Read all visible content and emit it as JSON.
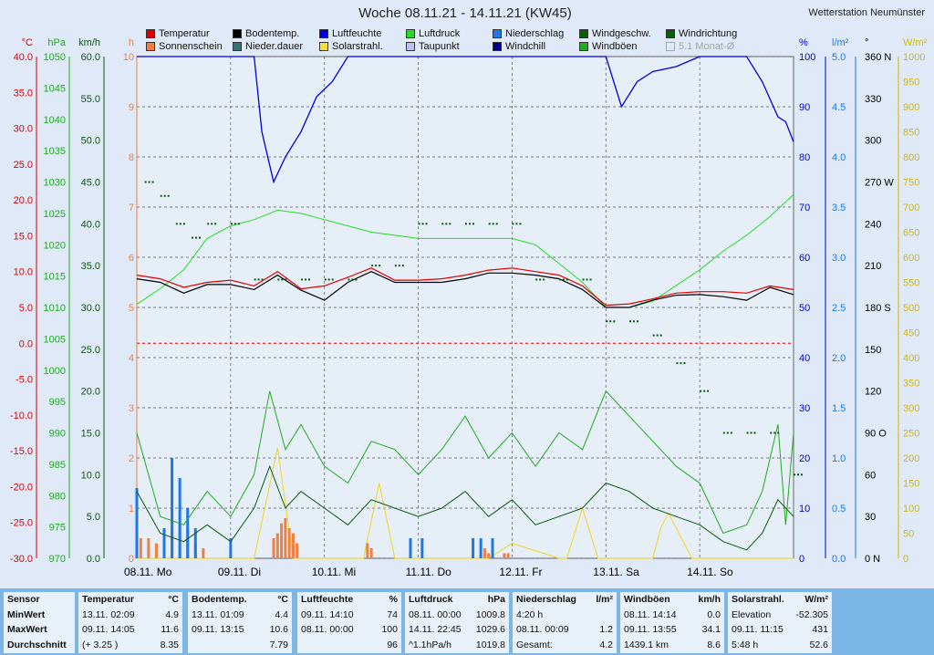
{
  "title": "Woche 08.11.21 - 14.11.21 (KW45)",
  "station": "Wetterstation Neumünster",
  "legend": [
    {
      "label": "Temperatur",
      "color": "#e00000"
    },
    {
      "label": "Bodentemp.",
      "color": "#000000"
    },
    {
      "label": "Luftfeuchte",
      "color": "#0000dd"
    },
    {
      "label": "Luftdruck",
      "color": "#22dd22"
    },
    {
      "label": "Niederschlag",
      "color": "#1e78e6"
    },
    {
      "label": "Windgeschw.",
      "color": "#0b5a0b"
    },
    {
      "label": "Windrichtung",
      "color": "#0b5a0b"
    },
    {
      "label": "Sonnenschein",
      "color": "#f08040"
    },
    {
      "label": "Nieder.dauer",
      "color": "#3c7070"
    },
    {
      "label": "Solarstrahl.",
      "color": "#f0e040"
    },
    {
      "label": "Taupunkt",
      "color": "#c0c0f0"
    },
    {
      "label": "Windchill",
      "color": "#000080"
    },
    {
      "label": "Windböen",
      "color": "#22aa22"
    },
    {
      "label": "5.1 Monat-Ø",
      "color": "#ffffff"
    }
  ],
  "axes": {
    "temp": {
      "unit": "°C",
      "ticks": [
        "40.0",
        "35.0",
        "30.0",
        "25.0",
        "20.0",
        "15.0",
        "10.0",
        "5.0",
        "0.0",
        "-5.0",
        "-10.0",
        "-15.0",
        "-20.0",
        "-25.0",
        "-30.0"
      ],
      "color": "#e00000"
    },
    "pressure": {
      "unit": "hPa",
      "ticks": [
        "1050",
        "1045",
        "1040",
        "1035",
        "1030",
        "1025",
        "1020",
        "1015",
        "1010",
        "1005",
        "1000",
        "995",
        "990",
        "985",
        "980",
        "975",
        "970"
      ],
      "color": "#22aa22"
    },
    "wind": {
      "unit": "km/h",
      "ticks": [
        "60.0",
        "55.0",
        "50.0",
        "45.0",
        "40.0",
        "35.0",
        "30.0",
        "25.0",
        "20.0",
        "15.0",
        "10.0",
        "5.0",
        "0.0"
      ],
      "color": "#0b5a0b"
    },
    "sun": {
      "unit": "h",
      "ticks": [
        "10",
        "9",
        "8",
        "7",
        "6",
        "5",
        "4",
        "3",
        "2",
        "1",
        "0"
      ],
      "color": "#f08040"
    },
    "humidity": {
      "unit": "%",
      "ticks": [
        "100",
        "90",
        "80",
        "70",
        "60",
        "50",
        "40",
        "30",
        "20",
        "10",
        "0"
      ],
      "color": "#0000dd"
    },
    "rain": {
      "unit": "l/m²",
      "ticks": [
        "5.0",
        "4.5",
        "4.0",
        "3.5",
        "3.0",
        "2.5",
        "2.0",
        "1.5",
        "1.0",
        "0.5",
        "0.0"
      ],
      "color": "#1e78e6"
    },
    "direction": {
      "unit": "°",
      "ticks": [
        "360 N",
        "330",
        "300",
        "270 W",
        "240",
        "210",
        "180 S",
        "150",
        "120",
        "90  O",
        "60",
        "30",
        "0   N"
      ],
      "color": "#000000"
    },
    "solar": {
      "unit": "W/m²",
      "ticks": [
        "1000",
        "950",
        "900",
        "850",
        "800",
        "750",
        "700",
        "650",
        "600",
        "550",
        "500",
        "450",
        "400",
        "350",
        "300",
        "250",
        "200",
        "150",
        "100",
        "50",
        "0"
      ],
      "color": "#d4b800"
    }
  },
  "days": [
    "08.11. Mo",
    "09.11. Di",
    "10.11. Mi",
    "11.11. Do",
    "12.11. Fr",
    "13.11. Sa",
    "14.11. So"
  ],
  "chart_data": {
    "type": "line",
    "title": "Woche 08.11.21 - 14.11.21 (KW45)",
    "x_unit": "hours since 08.11. 00:00",
    "series": [
      {
        "name": "Temperatur",
        "unit": "°C",
        "x": [
          0,
          6,
          12,
          18,
          24,
          30,
          36,
          42,
          48,
          54,
          60,
          66,
          72,
          78,
          84,
          90,
          96,
          102,
          108,
          114,
          120,
          126,
          132,
          138,
          144,
          150,
          156,
          162,
          168
        ],
        "values": [
          9.5,
          9.0,
          7.8,
          8.5,
          8.8,
          8.0,
          10.0,
          7.6,
          8.0,
          9.2,
          10.5,
          8.8,
          8.8,
          9.0,
          9.5,
          10.2,
          10.5,
          10.0,
          9.5,
          8.0,
          5.3,
          5.5,
          6.2,
          7.0,
          7.2,
          7.2,
          7.0,
          8.0,
          7.5
        ]
      },
      {
        "name": "Bodentemp.",
        "unit": "°C",
        "x": [
          0,
          6,
          12,
          18,
          24,
          30,
          36,
          42,
          48,
          54,
          60,
          66,
          72,
          78,
          84,
          90,
          96,
          102,
          108,
          114,
          120,
          126,
          132,
          138,
          144,
          150,
          156,
          162,
          168
        ],
        "values": [
          9.0,
          8.5,
          7.0,
          8.2,
          8.2,
          7.5,
          9.5,
          7.4,
          6.0,
          8.5,
          10.0,
          8.5,
          8.5,
          8.5,
          9.0,
          9.8,
          9.8,
          9.5,
          9.0,
          7.5,
          5.0,
          5.0,
          6.0,
          6.7,
          6.8,
          6.5,
          6.0,
          7.8,
          6.8
        ]
      },
      {
        "name": "Luftfeuchte",
        "unit": "%",
        "x": [
          0,
          6,
          12,
          18,
          24,
          30,
          32,
          35,
          38,
          42,
          46,
          50,
          54,
          60,
          66,
          72,
          78,
          84,
          90,
          96,
          102,
          108,
          112,
          116,
          120,
          124,
          128,
          132,
          138,
          144,
          150,
          156,
          160,
          164,
          166,
          168
        ],
        "values": [
          100,
          100,
          100,
          100,
          100,
          100,
          85,
          75,
          80,
          85,
          92,
          95,
          100,
          100,
          100,
          100,
          100,
          100,
          100,
          100,
          100,
          100,
          100,
          100,
          100,
          90,
          95,
          97,
          98,
          100,
          100,
          100,
          95,
          88,
          87,
          83
        ]
      },
      {
        "name": "Luftdruck",
        "unit": "hPa",
        "x": [
          0,
          6,
          12,
          18,
          24,
          30,
          36,
          42,
          48,
          54,
          60,
          66,
          72,
          78,
          84,
          90,
          96,
          102,
          108,
          114,
          120,
          126,
          132,
          138,
          144,
          150,
          156,
          162,
          168
        ],
        "values": [
          1010.5,
          1013,
          1016,
          1021,
          1023,
          1024,
          1025.5,
          1025,
          1024,
          1023,
          1022,
          1021.5,
          1021,
          1021,
          1021,
          1021,
          1021,
          1020,
          1017,
          1014,
          1010,
          1010,
          1011,
          1013.5,
          1016,
          1019,
          1021.5,
          1024.5,
          1028
        ]
      },
      {
        "name": "Windgeschw.",
        "unit": "km/h",
        "x": [
          0,
          6,
          12,
          18,
          24,
          30,
          34,
          38,
          42,
          48,
          54,
          60,
          66,
          72,
          78,
          84,
          90,
          96,
          102,
          108,
          114,
          120,
          126,
          132,
          138,
          144,
          150,
          156,
          160,
          164,
          168
        ],
        "values": [
          8,
          3,
          2,
          4,
          2,
          6,
          11,
          6,
          8,
          6,
          4,
          7,
          6,
          5,
          6,
          8,
          5,
          7,
          4,
          5,
          6,
          9,
          8,
          6,
          5,
          4,
          2,
          1,
          3,
          7,
          5
        ]
      },
      {
        "name": "Windböen",
        "unit": "km/h",
        "x": [
          0,
          6,
          12,
          18,
          24,
          30,
          34,
          38,
          42,
          48,
          54,
          60,
          66,
          72,
          78,
          84,
          90,
          96,
          102,
          108,
          114,
          120,
          126,
          132,
          138,
          144,
          150,
          156,
          160,
          164,
          166,
          168
        ],
        "values": [
          15,
          5,
          4,
          8,
          5,
          10,
          20,
          13,
          16,
          11,
          9,
          14,
          13,
          10,
          13,
          17,
          12,
          15,
          11,
          15,
          13,
          20,
          17,
          14,
          11,
          9,
          3,
          4,
          8,
          16,
          4,
          15
        ]
      },
      {
        "name": "Solarstrahl.",
        "unit": "W/m²",
        "x": [
          0,
          12,
          30,
          36,
          40,
          48,
          58,
          62,
          66,
          72,
          84,
          90,
          96,
          108,
          110,
          114,
          118,
          120,
          132,
          134,
          136,
          138,
          142,
          144,
          168
        ],
        "values": [
          0,
          0,
          0,
          220,
          0,
          0,
          0,
          150,
          0,
          0,
          0,
          0,
          30,
          0,
          0,
          100,
          0,
          0,
          0,
          60,
          90,
          60,
          0,
          0,
          0
        ]
      },
      {
        "name": "Windrichtung",
        "unit": "°",
        "x": [
          2,
          6,
          10,
          14,
          18,
          24,
          30,
          36,
          42,
          48,
          54,
          60,
          66,
          72,
          78,
          84,
          90,
          96,
          102,
          108,
          114,
          120,
          126,
          132,
          138,
          144,
          150,
          156,
          162,
          168
        ],
        "values": [
          270,
          260,
          240,
          230,
          240,
          240,
          200,
          200,
          200,
          200,
          200,
          210,
          210,
          240,
          240,
          240,
          240,
          240,
          200,
          200,
          200,
          170,
          170,
          160,
          140,
          120,
          90,
          90,
          90,
          60
        ]
      },
      {
        "name": "Sonnenschein",
        "unit": "h",
        "x": [
          1,
          3,
          5,
          7,
          9,
          11,
          13,
          15,
          17,
          35,
          36,
          37,
          38,
          39,
          40,
          41,
          59,
          60,
          89,
          90,
          94,
          95
        ],
        "values": [
          0.4,
          0.4,
          0.3,
          0.5,
          0.6,
          0.7,
          0.6,
          0.3,
          0.2,
          0.4,
          0.5,
          0.7,
          0.8,
          0.6,
          0.5,
          0.3,
          0.3,
          0.2,
          0.2,
          0.1,
          0.1,
          0.1
        ]
      },
      {
        "name": "Niederschlag",
        "unit": "l/m²",
        "x": [
          0,
          7,
          9,
          11,
          13,
          15,
          24,
          70,
          73,
          86,
          88,
          91
        ],
        "values": [
          0.7,
          0.3,
          1.0,
          0.8,
          0.5,
          0.3,
          0.2,
          0.2,
          0.2,
          0.2,
          0.2,
          0.2
        ]
      }
    ]
  },
  "stats": {
    "col0": {
      "title": "Sensor",
      "rows": [
        "MinWert",
        "MaxWert",
        "Durchschnitt"
      ]
    },
    "temperature": {
      "title": "Temperatur",
      "unit": "°C",
      "rows": [
        [
          "13.11.  02:09",
          "4.9"
        ],
        [
          "09.11.  14:05",
          "11.6"
        ],
        [
          "(+ 3.25 )",
          "8.35"
        ]
      ]
    },
    "soiltemp": {
      "title": "Bodentemp.",
      "unit": "°C",
      "rows": [
        [
          "13.11.  01:09",
          "4.4"
        ],
        [
          "09.11.  13:15",
          "10.6"
        ],
        [
          "",
          "7.79"
        ]
      ]
    },
    "humidity": {
      "title": "Luftfeuchte",
      "unit": "%",
      "rows": [
        [
          "09.11.  14:10",
          "74"
        ],
        [
          "08.11.  00:00",
          "100"
        ],
        [
          "",
          "96"
        ]
      ]
    },
    "pressure": {
      "title": "Luftdruck",
      "unit": "hPa",
      "rows": [
        [
          "08.11.  00:00",
          "1009.8"
        ],
        [
          "14.11.  22:45",
          "1029.6"
        ],
        [
          "^1.1hPa/h",
          "1019.8"
        ]
      ]
    },
    "rain": {
      "title": "Niederschlag",
      "unit": "l/m²",
      "rows": [
        [
          "4:20 h",
          ""
        ],
        [
          "08.11.  00:09",
          "1.2"
        ],
        [
          "Gesamt:",
          "4.2"
        ]
      ]
    },
    "gusts": {
      "title": "Windböen",
      "unit": "km/h",
      "rows": [
        [
          "08.11.  14:14",
          "0.0"
        ],
        [
          "09.11.  13:55",
          "34.1"
        ],
        [
          "1439.1 km",
          "8.6"
        ]
      ]
    },
    "solar": {
      "title": "Solarstrahl.",
      "unit": "W/m²",
      "rows": [
        [
          "Elevation",
          "-52.305"
        ],
        [
          "09.11.  11:15",
          "431"
        ],
        [
          "5:48 h",
          "52.6"
        ]
      ]
    }
  }
}
